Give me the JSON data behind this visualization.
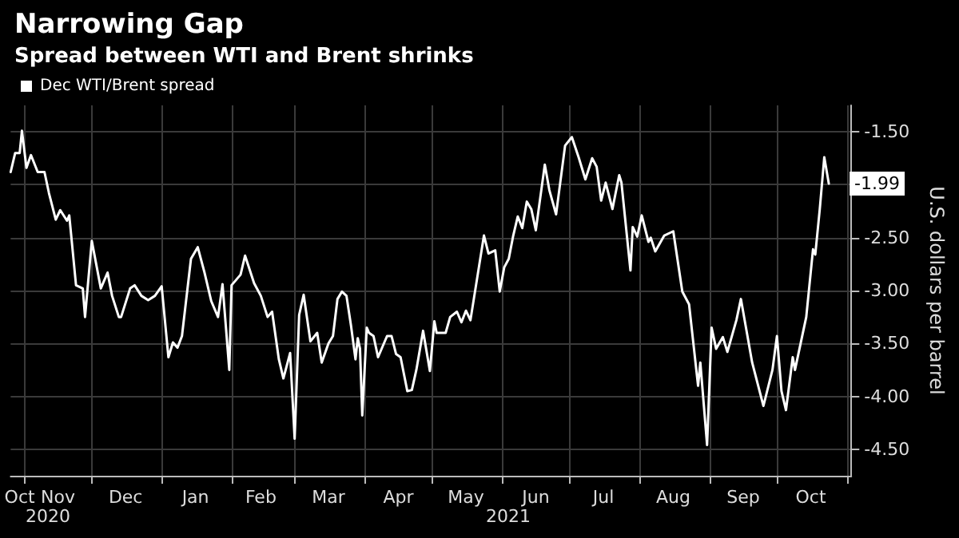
{
  "chart_data": {
    "type": "line",
    "title": "Narrowing Gap",
    "subtitle": "Spread between WTI and Brent shrinks",
    "ylabel": "U.S. dollars per barrel",
    "annotations": [
      "2020",
      "2021"
    ],
    "x": [
      "2020-10-26",
      "2020-10-28",
      "2020-10-30",
      "2020-10-31",
      "2020-11-02",
      "2020-11-04",
      "2020-11-07",
      "2020-11-10",
      "2020-11-12",
      "2020-11-15",
      "2020-11-17",
      "2020-11-20",
      "2020-11-21",
      "2020-11-24",
      "2020-11-27",
      "2020-11-28",
      "2020-12-01",
      "2020-12-05",
      "2020-12-08",
      "2020-12-10",
      "2020-12-13",
      "2020-12-14",
      "2020-12-18",
      "2020-12-20",
      "2020-12-23",
      "2020-12-26",
      "2020-12-29",
      "2021-01-01",
      "2021-01-04",
      "2021-01-06",
      "2021-01-08",
      "2021-01-10",
      "2021-01-14",
      "2021-01-17",
      "2021-01-20",
      "2021-01-23",
      "2021-01-26",
      "2021-01-28",
      "2021-01-31",
      "2021-02-01",
      "2021-02-05",
      "2021-02-07",
      "2021-02-11",
      "2021-02-14",
      "2021-02-17",
      "2021-02-19",
      "2021-02-22",
      "2021-02-24",
      "2021-02-27",
      "2021-03-01",
      "2021-03-03",
      "2021-03-05",
      "2021-03-08",
      "2021-03-11",
      "2021-03-13",
      "2021-03-16",
      "2021-03-18",
      "2021-03-20",
      "2021-03-22",
      "2021-03-24",
      "2021-03-26",
      "2021-03-28",
      "2021-03-29",
      "2021-03-30",
      "2021-03-31",
      "2021-04-02",
      "2021-04-03",
      "2021-04-05",
      "2021-04-07",
      "2021-04-11",
      "2021-04-13",
      "2021-04-15",
      "2021-04-17",
      "2021-04-20",
      "2021-04-22",
      "2021-04-24",
      "2021-04-27",
      "2021-04-30",
      "2021-05-02",
      "2021-05-03",
      "2021-05-07",
      "2021-05-09",
      "2021-05-12",
      "2021-05-14",
      "2021-05-16",
      "2021-05-18",
      "2021-05-24",
      "2021-05-26",
      "2021-05-29",
      "2021-05-31",
      "2021-06-02",
      "2021-06-04",
      "2021-06-06",
      "2021-06-08",
      "2021-06-10",
      "2021-06-12",
      "2021-06-14",
      "2021-06-16",
      "2021-06-20",
      "2021-06-22",
      "2021-06-25",
      "2021-06-29",
      "2021-07-02",
      "2021-07-05",
      "2021-07-08",
      "2021-07-11",
      "2021-07-13",
      "2021-07-15",
      "2021-07-17",
      "2021-07-20",
      "2021-07-23",
      "2021-07-24",
      "2021-07-28",
      "2021-07-29",
      "2021-07-31",
      "2021-08-02",
      "2021-08-05",
      "2021-08-06",
      "2021-08-08",
      "2021-08-12",
      "2021-08-16",
      "2021-08-20",
      "2021-08-23",
      "2021-08-27",
      "2021-08-28",
      "2021-08-31",
      "2021-09-02",
      "2021-09-04",
      "2021-09-07",
      "2021-09-09",
      "2021-09-13",
      "2021-09-15",
      "2021-09-20",
      "2021-09-25",
      "2021-09-29",
      "2021-10-01",
      "2021-10-03",
      "2021-10-05",
      "2021-10-08",
      "2021-10-09",
      "2021-10-14",
      "2021-10-17",
      "2021-10-18",
      "2021-10-20",
      "2021-10-22",
      "2021-10-24"
    ],
    "series": [
      {
        "name": "Dec WTI/Brent spread",
        "color": "#ffffff",
        "values": [
          -1.88,
          -1.7,
          -1.7,
          -1.49,
          -1.84,
          -1.72,
          -1.88,
          -1.88,
          -2.08,
          -2.33,
          -2.24,
          -2.34,
          -2.29,
          -2.95,
          -2.98,
          -3.25,
          -2.53,
          -2.98,
          -2.83,
          -3.05,
          -3.25,
          -3.25,
          -2.98,
          -2.95,
          -3.05,
          -3.09,
          -3.05,
          -2.96,
          -3.63,
          -3.49,
          -3.54,
          -3.43,
          -2.7,
          -2.59,
          -2.83,
          -3.1,
          -3.25,
          -2.94,
          -3.75,
          -2.95,
          -2.85,
          -2.67,
          -2.93,
          -3.05,
          -3.25,
          -3.2,
          -3.65,
          -3.83,
          -3.59,
          -4.4,
          -3.23,
          -3.04,
          -3.48,
          -3.4,
          -3.68,
          -3.5,
          -3.43,
          -3.08,
          -3.01,
          -3.05,
          -3.33,
          -3.65,
          -3.45,
          -3.55,
          -4.18,
          -3.35,
          -3.4,
          -3.43,
          -3.63,
          -3.43,
          -3.43,
          -3.6,
          -3.63,
          -3.95,
          -3.94,
          -3.75,
          -3.38,
          -3.76,
          -3.29,
          -3.4,
          -3.4,
          -3.25,
          -3.2,
          -3.3,
          -3.19,
          -3.28,
          -2.48,
          -2.65,
          -2.62,
          -3.01,
          -2.78,
          -2.7,
          -2.48,
          -2.3,
          -2.41,
          -2.16,
          -2.23,
          -2.43,
          -1.81,
          -2.05,
          -2.28,
          -1.63,
          -1.55,
          -1.74,
          -1.95,
          -1.75,
          -1.83,
          -2.15,
          -1.98,
          -2.23,
          -1.91,
          -1.98,
          -2.81,
          -2.4,
          -2.49,
          -2.29,
          -2.54,
          -2.5,
          -2.63,
          -2.48,
          -2.44,
          -3.01,
          -3.13,
          -3.9,
          -3.68,
          -4.46,
          -3.35,
          -3.55,
          -3.44,
          -3.58,
          -3.28,
          -3.08,
          -3.68,
          -4.09,
          -3.75,
          -3.43,
          -3.95,
          -4.13,
          -3.63,
          -3.75,
          -3.25,
          -2.61,
          -2.66,
          -2.23,
          -1.74,
          -1.99
        ],
        "value_labels": [
          null,
          null,
          null,
          null,
          null,
          null,
          null,
          null,
          null,
          null,
          null,
          null,
          null,
          null,
          null,
          null,
          null,
          null,
          null,
          null,
          null,
          null,
          null,
          null,
          null,
          null,
          null,
          null,
          null,
          null,
          null,
          null,
          null,
          null,
          null,
          null,
          null,
          null,
          null,
          null,
          null,
          null,
          null,
          null,
          null,
          null,
          null,
          null,
          null,
          null,
          null,
          null,
          null,
          null,
          null,
          null,
          null,
          null,
          null,
          null,
          null,
          null,
          null,
          null,
          null,
          null,
          null,
          null,
          null,
          null,
          null,
          null,
          null,
          null,
          null,
          null,
          null,
          null,
          null,
          null,
          null,
          null,
          null,
          null,
          null,
          null,
          null,
          null,
          null,
          null,
          null,
          null,
          null,
          null,
          null,
          null,
          null,
          null,
          null,
          null,
          null,
          null,
          null,
          null,
          null,
          null,
          null,
          null,
          null,
          null,
          null,
          null,
          null,
          null,
          null,
          null,
          null,
          null,
          null,
          null,
          null,
          null,
          null,
          null,
          null,
          null,
          null,
          null,
          null,
          null,
          null,
          null,
          null,
          null,
          null,
          null,
          null,
          null,
          null,
          null,
          null,
          null,
          null,
          null,
          null,
          "-1.99"
        ]
      }
    ],
    "xlim": [
      "2020-10-26",
      "2021-11-03"
    ],
    "xticks": [
      {
        "value": "2020-10-30",
        "label": "Oct"
      },
      {
        "value": "2020-11-01",
        "label": null
      },
      {
        "value": "2020-11-16",
        "label": "Nov"
      },
      {
        "value": "2020-12-01",
        "label": null
      },
      {
        "value": "2020-12-16",
        "label": "Dec"
      },
      {
        "value": "2021-01-01",
        "label": null
      },
      {
        "value": "2021-01-16",
        "label": "Jan"
      },
      {
        "value": "2021-02-01",
        "label": null
      },
      {
        "value": "2021-02-14",
        "label": "Feb"
      },
      {
        "value": "2021-03-01",
        "label": null
      },
      {
        "value": "2021-03-16",
        "label": "Mar"
      },
      {
        "value": "2021-04-01",
        "label": null
      },
      {
        "value": "2021-04-16",
        "label": "Apr"
      },
      {
        "value": "2021-05-01",
        "label": null
      },
      {
        "value": "2021-05-16",
        "label": "May"
      },
      {
        "value": "2021-06-01",
        "label": null
      },
      {
        "value": "2021-06-16",
        "label": "Jun"
      },
      {
        "value": "2021-07-01",
        "label": null
      },
      {
        "value": "2021-07-16",
        "label": "Jul"
      },
      {
        "value": "2021-08-01",
        "label": null
      },
      {
        "value": "2021-08-16",
        "label": "Aug"
      },
      {
        "value": "2021-09-01",
        "label": null
      },
      {
        "value": "2021-09-16",
        "label": "Sep"
      },
      {
        "value": "2021-10-01",
        "label": null
      },
      {
        "value": "2021-10-16",
        "label": "Oct"
      },
      {
        "value": "2021-11-01",
        "label": null
      }
    ],
    "ylim": [
      -4.75,
      -1.25
    ],
    "yticks": [
      {
        "value": -1.5,
        "label": "-1.50"
      },
      {
        "value": -2,
        "label": null
      },
      {
        "value": -2.5,
        "label": "-2.50"
      },
      {
        "value": -3,
        "label": "-3.00"
      },
      {
        "value": -3.5,
        "label": "-3.50"
      },
      {
        "value": -4,
        "label": "-4.00"
      },
      {
        "value": -4.5,
        "label": "-4.50"
      }
    ],
    "grid": true,
    "legend": "top left",
    "marker": "none",
    "line_style": "solid"
  }
}
